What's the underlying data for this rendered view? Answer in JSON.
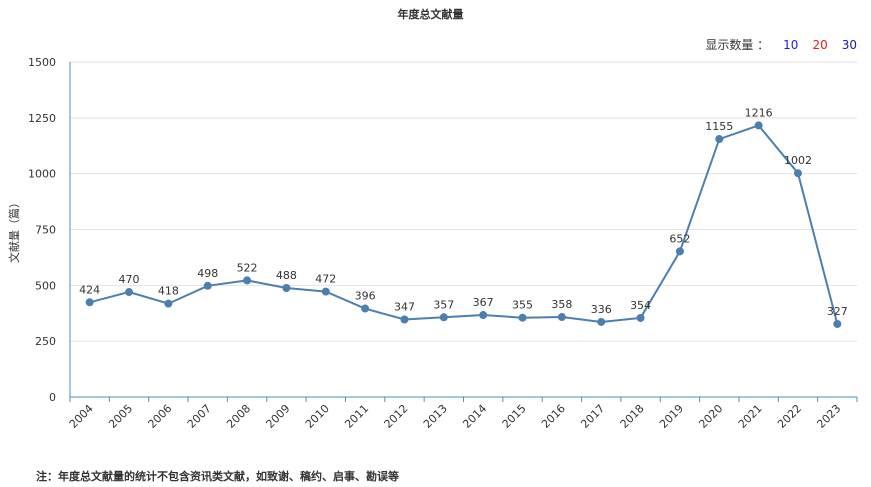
{
  "chart_data": {
    "type": "line",
    "title": "年度总文献量",
    "ylabel": "文献量（篇）",
    "xlabel": "",
    "categories": [
      "2004",
      "2005",
      "2006",
      "2007",
      "2008",
      "2009",
      "2010",
      "2011",
      "2012",
      "2013",
      "2014",
      "2015",
      "2016",
      "2017",
      "2018",
      "2019",
      "2020",
      "2021",
      "2022",
      "2023"
    ],
    "series": [
      {
        "values": [
          424,
          470,
          418,
          498,
          522,
          488,
          472,
          396,
          347,
          357,
          367,
          355,
          358,
          336,
          354,
          652,
          1155,
          1216,
          1002,
          327
        ]
      }
    ],
    "ylim": [
      0,
      1500
    ],
    "yticks": [
      0,
      250,
      500,
      750,
      1000,
      1250,
      1500
    ],
    "grid": true,
    "colors": {
      "line": "#4a7fb0",
      "grid": "#e3e3e3",
      "axis": "#4a90c8"
    }
  },
  "show_count": {
    "label": "显示数量 ：",
    "options": [
      {
        "text": "10",
        "color": "#1a1aff"
      },
      {
        "text": "20",
        "color": "#e02020"
      },
      {
        "text": "30",
        "color": "#1a1aa0"
      }
    ]
  },
  "note": "注：年度总文献量的统计不包含资讯类文献，如致谢、稿约、启事、勘误等"
}
